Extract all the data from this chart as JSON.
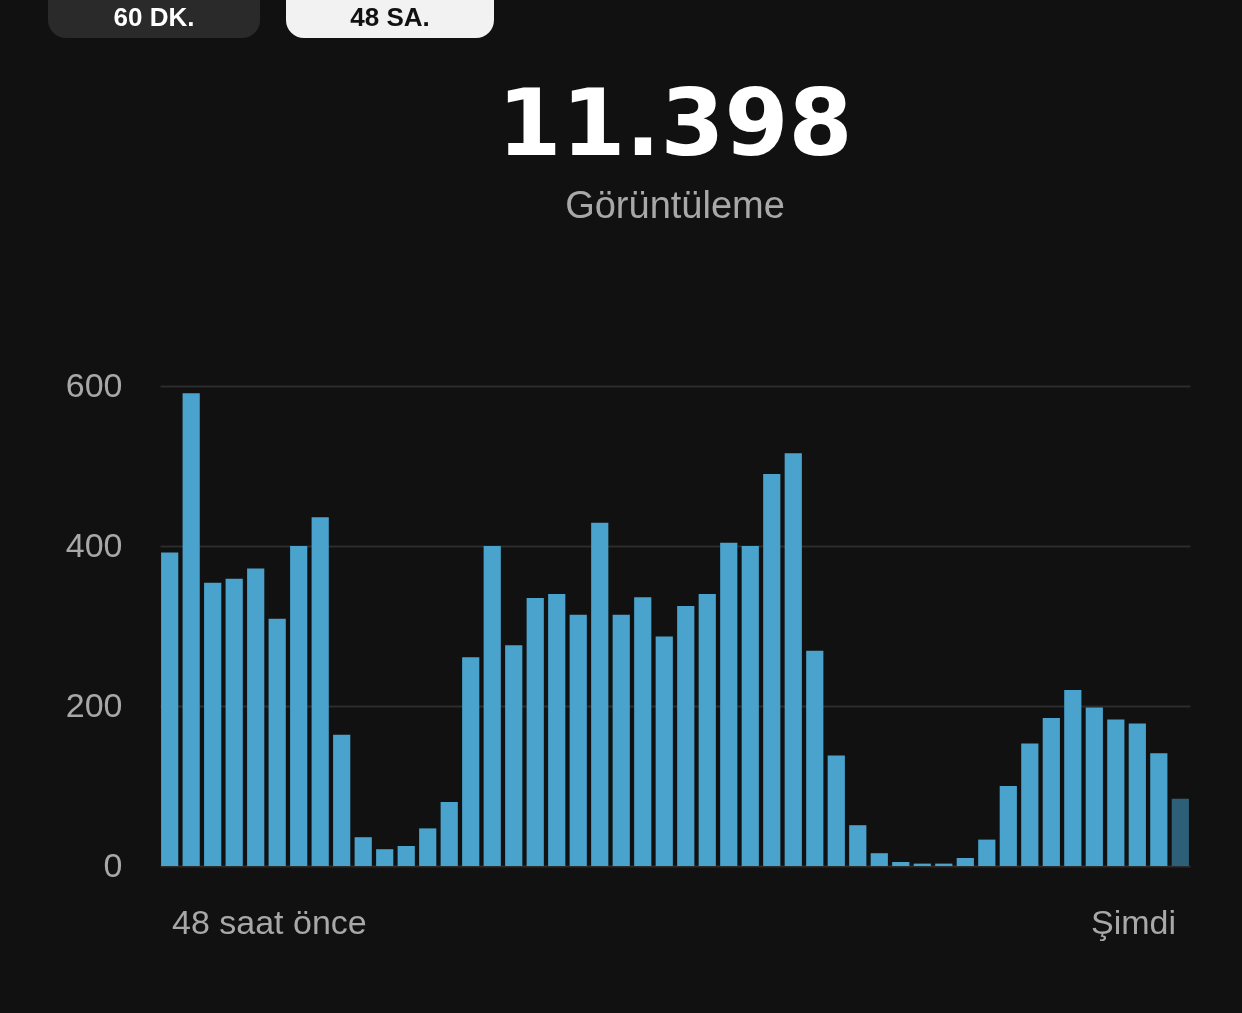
{
  "chart_data": {
    "type": "bar",
    "title": "11.398",
    "subtitle": "Görüntüleme",
    "annotations": [
      "60 DK.",
      "48 SA.",
      "48 saat önce",
      "Şimdi"
    ],
    "categories": [
      null,
      null,
      null,
      null,
      null,
      null,
      null,
      null,
      null,
      null,
      null,
      null,
      null,
      null,
      null,
      null,
      null,
      null,
      null,
      null,
      null,
      null,
      null,
      null,
      null,
      null,
      null,
      null,
      null,
      null,
      null,
      null,
      null,
      null,
      null,
      null,
      null,
      null,
      null,
      null,
      null,
      null,
      null,
      null,
      null,
      null,
      null,
      null
    ],
    "values": [
      392,
      591,
      354,
      359,
      372,
      309,
      400,
      436,
      164,
      36,
      21,
      25,
      47,
      80,
      261,
      400,
      276,
      335,
      340,
      314,
      429,
      314,
      336,
      287,
      325,
      340,
      404,
      400,
      490,
      516,
      269,
      138,
      51,
      16,
      5,
      3,
      3,
      10,
      33,
      100,
      153,
      185,
      220,
      198,
      183,
      178,
      141,
      84
    ],
    "colors": [
      "#4aa3cc",
      "#4aa3cc",
      "#4aa3cc",
      "#4aa3cc",
      "#4aa3cc",
      "#4aa3cc",
      "#4aa3cc",
      "#4aa3cc",
      "#4aa3cc",
      "#4aa3cc",
      "#4aa3cc",
      "#4aa3cc",
      "#4aa3cc",
      "#4aa3cc",
      "#4aa3cc",
      "#4aa3cc",
      "#4aa3cc",
      "#4aa3cc",
      "#4aa3cc",
      "#4aa3cc",
      "#4aa3cc",
      "#4aa3cc",
      "#4aa3cc",
      "#4aa3cc",
      "#4aa3cc",
      "#4aa3cc",
      "#4aa3cc",
      "#4aa3cc",
      "#4aa3cc",
      "#4aa3cc",
      "#4aa3cc",
      "#4aa3cc",
      "#4aa3cc",
      "#4aa3cc",
      "#4aa3cc",
      "#4aa3cc",
      "#4aa3cc",
      "#4aa3cc",
      "#4aa3cc",
      "#4aa3cc",
      "#4aa3cc",
      "#4aa3cc",
      "#4aa3cc",
      "#4aa3cc",
      "#4aa3cc",
      "#4aa3cc",
      "#4aa3cc",
      "#2d6078"
    ],
    "ylim": [
      0,
      600
    ],
    "yticks": [
      0,
      200,
      400,
      600
    ],
    "grid": "y"
  }
}
